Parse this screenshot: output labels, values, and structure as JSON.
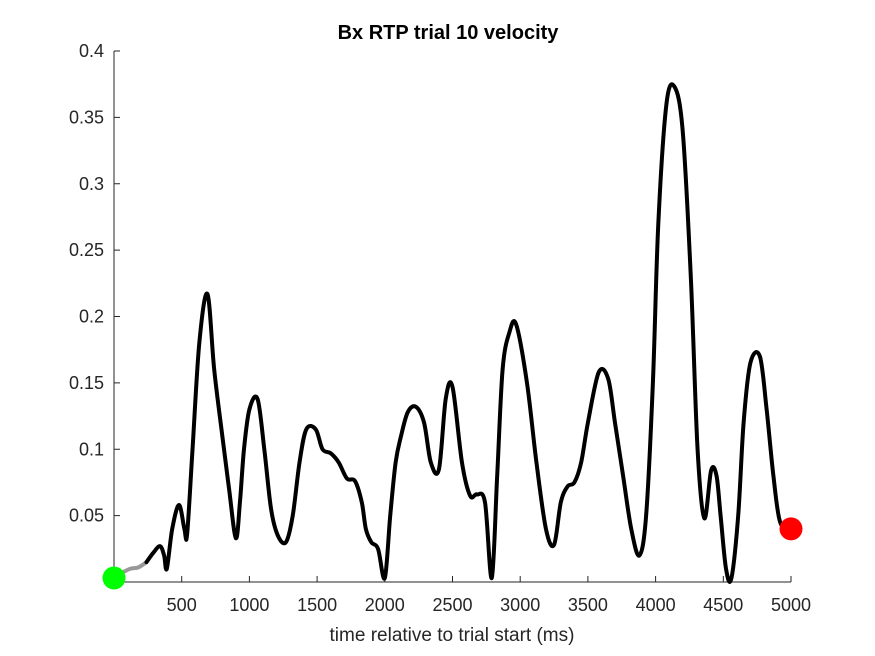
{
  "chart_data": {
    "type": "line",
    "title": "Bx  RTP trial 10 velocity",
    "xlabel": "time relative to trial start (ms)",
    "ylabel": "",
    "xlim": [
      0,
      5000
    ],
    "ylim": [
      0,
      0.4
    ],
    "xticks": [
      500,
      1000,
      1500,
      2000,
      2500,
      3000,
      3500,
      4000,
      4500,
      5000
    ],
    "xtick_labels": [
      "500",
      "1000",
      "1500",
      "2000",
      "2500",
      "3000",
      "3500",
      "4000",
      "4500",
      "5000"
    ],
    "yticks": [
      0.05,
      0.1,
      0.15,
      0.2,
      0.25,
      0.3,
      0.35,
      0.4
    ],
    "ytick_labels": [
      "0.05",
      "0.1",
      "0.15",
      "0.2",
      "0.25",
      "0.3",
      "0.35",
      "0.4"
    ],
    "grid": false,
    "series": [
      {
        "color": "#999999",
        "x": [
          0,
          60,
          120,
          180,
          240
        ],
        "y": [
          0.003,
          0.007,
          0.01,
          0.011,
          0.015
        ]
      },
      {
        "color": "#000000",
        "x": [
          240,
          290,
          340,
          370,
          390,
          430,
          480,
          520,
          540,
          580,
          630,
          690,
          740,
          800,
          850,
          900,
          930,
          960,
          1000,
          1060,
          1110,
          1160,
          1210,
          1270,
          1320,
          1370,
          1420,
          1490,
          1540,
          1600,
          1660,
          1720,
          1780,
          1830,
          1860,
          1900,
          1950,
          2000,
          2040,
          2080,
          2120,
          2170,
          2230,
          2290,
          2340,
          2400,
          2450,
          2500,
          2570,
          2630,
          2680,
          2740,
          2790,
          2830,
          2870,
          2920,
          2970,
          3050,
          3120,
          3190,
          3250,
          3300,
          3350,
          3400,
          3450,
          3500,
          3580,
          3650,
          3700,
          3760,
          3820,
          3880,
          3930,
          3980,
          4020,
          4080,
          4140,
          4200,
          4260,
          4310,
          4360,
          4410,
          4450,
          4480,
          4520,
          4560,
          4610,
          4650,
          4700,
          4770,
          4820,
          4870,
          4920,
          5000
        ],
        "y": [
          0.015,
          0.022,
          0.027,
          0.02,
          0.01,
          0.04,
          0.058,
          0.04,
          0.036,
          0.1,
          0.18,
          0.217,
          0.16,
          0.11,
          0.07,
          0.033,
          0.06,
          0.1,
          0.13,
          0.138,
          0.1,
          0.055,
          0.035,
          0.03,
          0.05,
          0.09,
          0.115,
          0.115,
          0.1,
          0.097,
          0.09,
          0.078,
          0.076,
          0.06,
          0.04,
          0.03,
          0.025,
          0.003,
          0.05,
          0.09,
          0.11,
          0.128,
          0.132,
          0.12,
          0.09,
          0.085,
          0.138,
          0.147,
          0.09,
          0.065,
          0.066,
          0.06,
          0.003,
          0.08,
          0.16,
          0.188,
          0.194,
          0.15,
          0.09,
          0.04,
          0.028,
          0.06,
          0.072,
          0.075,
          0.09,
          0.12,
          0.158,
          0.153,
          0.12,
          0.08,
          0.04,
          0.02,
          0.05,
          0.15,
          0.27,
          0.36,
          0.373,
          0.34,
          0.23,
          0.1,
          0.048,
          0.084,
          0.08,
          0.05,
          0.01,
          0.003,
          0.05,
          0.12,
          0.165,
          0.17,
          0.13,
          0.08,
          0.045,
          0.04
        ]
      }
    ],
    "markers": [
      {
        "x": 0,
        "y": 0.003,
        "color": "#00ff00"
      },
      {
        "x": 5000,
        "y": 0.04,
        "color": "#ff0000"
      }
    ]
  }
}
